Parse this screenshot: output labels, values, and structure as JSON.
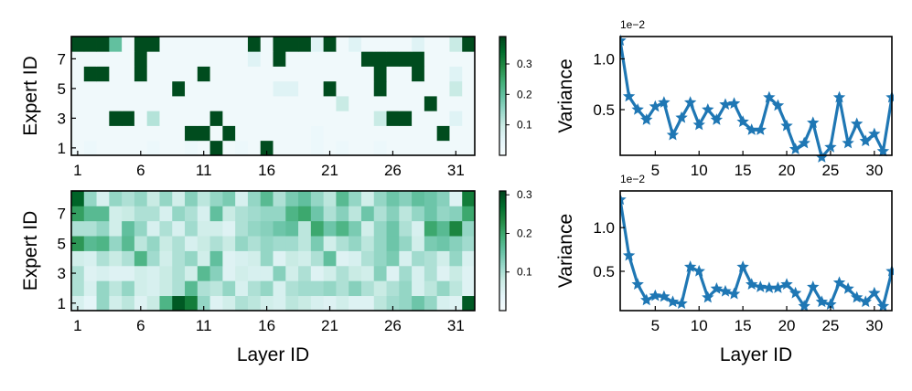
{
  "chart_data": [
    {
      "type": "heatmap",
      "panel": "top-left",
      "xlabel": "",
      "ylabel": "Expert ID",
      "x_tick_labels": [
        "1",
        "6",
        "11",
        "16",
        "21",
        "26",
        "31"
      ],
      "x_tick_values": [
        1,
        6,
        11,
        16,
        21,
        26,
        31
      ],
      "y_tick_labels": [
        "1",
        "3",
        "5",
        "7"
      ],
      "y_tick_values": [
        1,
        3,
        5,
        7
      ],
      "layers": 32,
      "experts": 8,
      "colormap": "BuGn",
      "colorbar": {
        "vmin": 0.0,
        "vmax": 0.39,
        "tick_values": [
          0.1,
          0.2,
          0.3
        ],
        "tick_labels": [
          "0.1",
          "0.2",
          "0.3"
        ]
      },
      "rows_expert_1_to_8": [
        [
          0.02,
          0.03,
          0.02,
          0.02,
          0.02,
          0.02,
          0.03,
          0.02,
          0.02,
          0.03,
          0.02,
          0.38,
          0.02,
          0.03,
          0.02,
          0.38,
          0.02,
          0.02,
          0.02,
          0.03,
          0.02,
          0.03,
          0.02,
          0.02,
          0.03,
          0.02,
          0.02,
          0.02,
          0.02,
          0.02,
          0.02,
          0.02
        ],
        [
          0.02,
          0.02,
          0.02,
          0.02,
          0.02,
          0.02,
          0.02,
          0.02,
          0.02,
          0.38,
          0.38,
          0.02,
          0.38,
          0.02,
          0.02,
          0.02,
          0.02,
          0.02,
          0.02,
          0.03,
          0.02,
          0.02,
          0.02,
          0.02,
          0.02,
          0.02,
          0.02,
          0.02,
          0.02,
          0.38,
          0.02,
          0.02
        ],
        [
          0.02,
          0.02,
          0.02,
          0.38,
          0.38,
          0.02,
          0.12,
          0.02,
          0.02,
          0.02,
          0.02,
          0.38,
          0.02,
          0.02,
          0.02,
          0.02,
          0.02,
          0.02,
          0.02,
          0.02,
          0.02,
          0.02,
          0.02,
          0.02,
          0.1,
          0.38,
          0.38,
          0.02,
          0.02,
          0.02,
          0.06,
          0.02
        ],
        [
          0.02,
          0.02,
          0.02,
          0.02,
          0.02,
          0.02,
          0.02,
          0.02,
          0.02,
          0.02,
          0.02,
          0.02,
          0.02,
          0.02,
          0.02,
          0.02,
          0.02,
          0.02,
          0.02,
          0.02,
          0.02,
          0.1,
          0.02,
          0.02,
          0.02,
          0.02,
          0.02,
          0.02,
          0.38,
          0.02,
          0.02,
          0.02
        ],
        [
          0.02,
          0.02,
          0.02,
          0.02,
          0.02,
          0.02,
          0.02,
          0.02,
          0.38,
          0.02,
          0.02,
          0.02,
          0.02,
          0.02,
          0.02,
          0.02,
          0.06,
          0.06,
          0.02,
          0.02,
          0.38,
          0.02,
          0.02,
          0.02,
          0.38,
          0.02,
          0.02,
          0.02,
          0.02,
          0.02,
          0.1,
          0.02
        ],
        [
          0.02,
          0.38,
          0.38,
          0.02,
          0.02,
          0.38,
          0.02,
          0.02,
          0.02,
          0.02,
          0.38,
          0.02,
          0.02,
          0.02,
          0.02,
          0.02,
          0.02,
          0.02,
          0.02,
          0.02,
          0.02,
          0.02,
          0.02,
          0.02,
          0.38,
          0.02,
          0.02,
          0.38,
          0.02,
          0.02,
          0.06,
          0.02
        ],
        [
          0.02,
          0.02,
          0.02,
          0.02,
          0.02,
          0.38,
          0.02,
          0.02,
          0.02,
          0.02,
          0.02,
          0.02,
          0.02,
          0.02,
          0.06,
          0.02,
          0.38,
          0.02,
          0.02,
          0.02,
          0.02,
          0.02,
          0.02,
          0.38,
          0.38,
          0.38,
          0.38,
          0.38,
          0.02,
          0.02,
          0.02,
          0.02
        ],
        [
          0.38,
          0.38,
          0.38,
          0.2,
          0.02,
          0.38,
          0.38,
          0.02,
          0.02,
          0.02,
          0.02,
          0.02,
          0.02,
          0.02,
          0.38,
          0.02,
          0.38,
          0.38,
          0.38,
          0.06,
          0.38,
          0.02,
          0.06,
          0.02,
          0.02,
          0.02,
          0.02,
          0.06,
          0.02,
          0.02,
          0.1,
          0.38
        ]
      ]
    },
    {
      "type": "heatmap",
      "panel": "bottom-left",
      "xlabel": "Layer ID",
      "ylabel": "Expert ID",
      "x_tick_labels": [
        "1",
        "6",
        "11",
        "16",
        "21",
        "26",
        "31"
      ],
      "x_tick_values": [
        1,
        6,
        11,
        16,
        21,
        26,
        31
      ],
      "y_tick_labels": [
        "1",
        "3",
        "5",
        "7"
      ],
      "y_tick_values": [
        1,
        3,
        5,
        7
      ],
      "layers": 32,
      "experts": 8,
      "colormap": "BuGn",
      "colorbar": {
        "vmin": 0.0,
        "vmax": 0.31,
        "tick_values": [
          0.1,
          0.2,
          0.3
        ],
        "tick_labels": [
          "0.1",
          "0.2",
          "0.3"
        ]
      },
      "rows_expert_1_to_8": [
        [
          0.06,
          0.04,
          0.12,
          0.07,
          0.09,
          0.05,
          0.08,
          0.18,
          0.29,
          0.25,
          0.12,
          0.05,
          0.07,
          0.1,
          0.09,
          0.07,
          0.06,
          0.09,
          0.08,
          0.06,
          0.05,
          0.07,
          0.05,
          0.05,
          0.09,
          0.11,
          0.12,
          0.15,
          0.12,
          0.06,
          0.05,
          0.29
        ],
        [
          0.1,
          0.06,
          0.12,
          0.09,
          0.12,
          0.07,
          0.06,
          0.08,
          0.1,
          0.17,
          0.1,
          0.09,
          0.12,
          0.06,
          0.1,
          0.12,
          0.06,
          0.1,
          0.11,
          0.11,
          0.12,
          0.1,
          0.13,
          0.1,
          0.08,
          0.1,
          0.12,
          0.06,
          0.09,
          0.12,
          0.09,
          0.05
        ],
        [
          0.1,
          0.05,
          0.06,
          0.05,
          0.05,
          0.07,
          0.06,
          0.08,
          0.1,
          0.07,
          0.17,
          0.13,
          0.05,
          0.07,
          0.06,
          0.06,
          0.13,
          0.07,
          0.1,
          0.05,
          0.07,
          0.1,
          0.08,
          0.07,
          0.13,
          0.05,
          0.11,
          0.06,
          0.1,
          0.05,
          0.08,
          0.05
        ],
        [
          0.07,
          0.06,
          0.1,
          0.08,
          0.1,
          0.18,
          0.11,
          0.07,
          0.1,
          0.12,
          0.07,
          0.16,
          0.05,
          0.06,
          0.07,
          0.12,
          0.05,
          0.08,
          0.07,
          0.1,
          0.16,
          0.05,
          0.06,
          0.1,
          0.12,
          0.14,
          0.06,
          0.11,
          0.1,
          0.07,
          0.12,
          0.06
        ],
        [
          0.22,
          0.17,
          0.18,
          0.12,
          0.17,
          0.09,
          0.12,
          0.08,
          0.1,
          0.06,
          0.08,
          0.1,
          0.08,
          0.12,
          0.1,
          0.12,
          0.11,
          0.11,
          0.09,
          0.14,
          0.07,
          0.1,
          0.12,
          0.09,
          0.12,
          0.15,
          0.12,
          0.07,
          0.14,
          0.15,
          0.13,
          0.11
        ],
        [
          0.1,
          0.1,
          0.12,
          0.07,
          0.16,
          0.12,
          0.06,
          0.1,
          0.06,
          0.11,
          0.07,
          0.07,
          0.05,
          0.1,
          0.12,
          0.13,
          0.15,
          0.16,
          0.09,
          0.2,
          0.15,
          0.18,
          0.14,
          0.07,
          0.12,
          0.15,
          0.1,
          0.06,
          0.2,
          0.17,
          0.24,
          0.12
        ],
        [
          0.21,
          0.17,
          0.17,
          0.07,
          0.08,
          0.1,
          0.1,
          0.06,
          0.12,
          0.1,
          0.06,
          0.16,
          0.08,
          0.1,
          0.11,
          0.12,
          0.12,
          0.18,
          0.2,
          0.15,
          0.1,
          0.13,
          0.09,
          0.15,
          0.1,
          0.13,
          0.09,
          0.12,
          0.15,
          0.12,
          0.13,
          0.2
        ],
        [
          0.28,
          0.12,
          0.06,
          0.12,
          0.1,
          0.12,
          0.08,
          0.12,
          0.07,
          0.13,
          0.09,
          0.12,
          0.14,
          0.06,
          0.12,
          0.17,
          0.1,
          0.14,
          0.16,
          0.12,
          0.09,
          0.17,
          0.12,
          0.07,
          0.12,
          0.15,
          0.13,
          0.16,
          0.15,
          0.13,
          0.05,
          0.25
        ]
      ]
    },
    {
      "type": "line",
      "panel": "top-right",
      "xlabel": "",
      "ylabel": "Variance",
      "offset_text": "1e−2",
      "x_tick_labels": [
        "5",
        "10",
        "15",
        "20",
        "25",
        "30"
      ],
      "x_tick_values": [
        5,
        10,
        15,
        20,
        25,
        30
      ],
      "y_tick_labels": [
        "0.5",
        "1.0"
      ],
      "y_tick_values": [
        0.5,
        1.0
      ],
      "xlim": [
        1,
        32
      ],
      "ylim": [
        0.05,
        1.22
      ],
      "color": "#1f77b4",
      "marker": "star",
      "series": [
        {
          "name": "Variance",
          "x": [
            1,
            2,
            3,
            4,
            5,
            6,
            7,
            8,
            9,
            10,
            11,
            12,
            13,
            14,
            15,
            16,
            17,
            18,
            19,
            20,
            21,
            22,
            23,
            24,
            25,
            26,
            27,
            28,
            29,
            30,
            31,
            32
          ],
          "values": [
            1.18,
            0.63,
            0.5,
            0.4,
            0.53,
            0.57,
            0.25,
            0.42,
            0.57,
            0.35,
            0.5,
            0.4,
            0.55,
            0.56,
            0.38,
            0.3,
            0.3,
            0.62,
            0.54,
            0.34,
            0.11,
            0.17,
            0.37,
            0.03,
            0.13,
            0.62,
            0.17,
            0.36,
            0.19,
            0.26,
            0.09,
            0.62
          ]
        }
      ]
    },
    {
      "type": "line",
      "panel": "bottom-right",
      "xlabel": "Layer ID",
      "ylabel": "Variance",
      "offset_text": "1e−2",
      "x_tick_labels": [
        "5",
        "10",
        "15",
        "20",
        "25",
        "30"
      ],
      "x_tick_values": [
        5,
        10,
        15,
        20,
        25,
        30
      ],
      "y_tick_labels": [
        "0.5",
        "1.0"
      ],
      "y_tick_values": [
        0.5,
        1.0
      ],
      "xlim": [
        1,
        32
      ],
      "ylim": [
        0.05,
        1.42
      ],
      "color": "#1f77b4",
      "marker": "star",
      "series": [
        {
          "name": "Variance",
          "x": [
            1,
            2,
            3,
            4,
            5,
            6,
            7,
            8,
            9,
            10,
            11,
            12,
            13,
            14,
            15,
            16,
            17,
            18,
            19,
            20,
            21,
            22,
            23,
            24,
            25,
            26,
            27,
            28,
            29,
            30,
            31,
            32
          ],
          "values": [
            1.32,
            0.68,
            0.35,
            0.17,
            0.22,
            0.21,
            0.15,
            0.13,
            0.55,
            0.5,
            0.2,
            0.3,
            0.27,
            0.24,
            0.55,
            0.35,
            0.32,
            0.31,
            0.31,
            0.35,
            0.25,
            0.1,
            0.32,
            0.15,
            0.12,
            0.37,
            0.3,
            0.2,
            0.15,
            0.25,
            0.1,
            0.5
          ]
        }
      ]
    }
  ]
}
